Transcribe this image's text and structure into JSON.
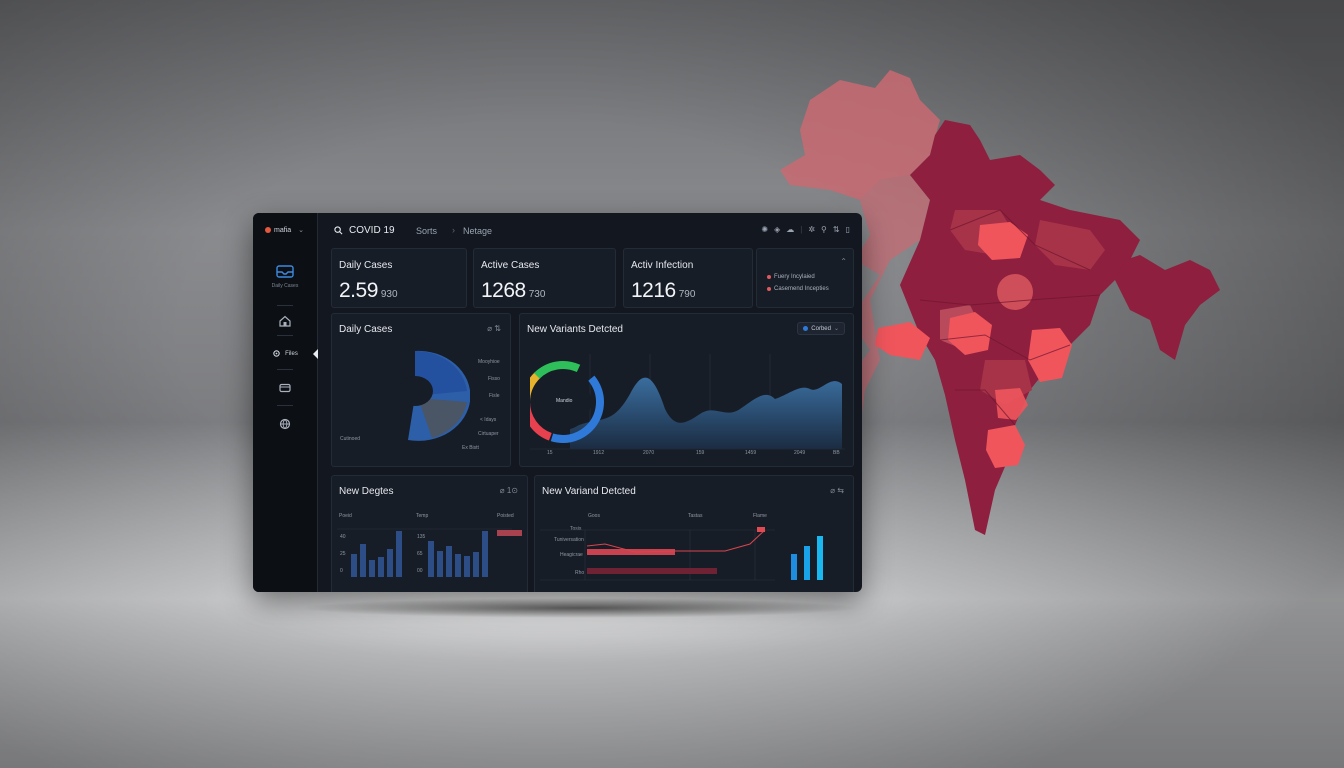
{
  "colors": {
    "accent_blue": "#2f7ad8",
    "map_dark": "#8e1f3e",
    "map_mid": "#b84a5b",
    "map_hot": "#f0555c",
    "map_pale": "#c96a72"
  },
  "sidebar": {
    "brand": "mafia",
    "items": [
      {
        "icon": "inbox-icon",
        "label": "Daily Cases"
      },
      {
        "icon": "home-icon",
        "label": ""
      },
      {
        "icon": "gear-icon",
        "label": "Files"
      },
      {
        "icon": "card-icon",
        "label": ""
      },
      {
        "icon": "globe-icon",
        "label": ""
      }
    ]
  },
  "topbar": {
    "search_text": "COVID 19",
    "tabs": [
      "Sorts",
      "Netage"
    ],
    "separator": "›",
    "icons": [
      "bug-icon",
      "shield-icon",
      "cloud-icon",
      "gear-icon",
      "pin-icon",
      "sort-icon",
      "doc-icon"
    ]
  },
  "kpis": [
    {
      "title": "Daily Cases",
      "value": "2.59",
      "unit": "930"
    },
    {
      "title": "Active Cases",
      "value": "1268",
      "unit": "730"
    },
    {
      "title": "Activ Infection",
      "value": "1216",
      "unit": "790"
    }
  ],
  "legend": {
    "items": [
      {
        "label": "Fuery Incylaied",
        "color": "#e0595e"
      },
      {
        "label": "Casemend Incepties",
        "color": "#e0595e"
      }
    ]
  },
  "cards": {
    "daily": {
      "title": "Daily Cases",
      "icons": "⌀ ⇅",
      "labels": [
        "Mooyhioe",
        "Fisso",
        "Fisle",
        "< Idays",
        "Cirtuaper",
        "Ex Bistt",
        "Cutinoed"
      ]
    },
    "variants": {
      "title": "New Variants Detcted",
      "filter_label": "Corbed",
      "donut_label": "Mandio",
      "x_ticks": [
        "15",
        "1912",
        "2070",
        "159",
        "1459",
        "2049",
        "ВВ"
      ]
    },
    "new": {
      "title": "New Degtes",
      "icons": "⌀ 1⊙",
      "col_labels": [
        "Poeid",
        "Temp",
        "Poisted"
      ],
      "y_ticks_left": [
        "40",
        "25",
        "0"
      ],
      "y_ticks_mid": [
        "135",
        "65",
        "00"
      ]
    },
    "variants2": {
      "title": "New Variand Detcted",
      "icons": "⌀ ⇆",
      "col_labels": [
        "Goos",
        "Tastas",
        "Flame"
      ],
      "row_labels": [
        "Tosis",
        "Tuniversation",
        "Heagicrae",
        "Rho"
      ]
    }
  }
}
